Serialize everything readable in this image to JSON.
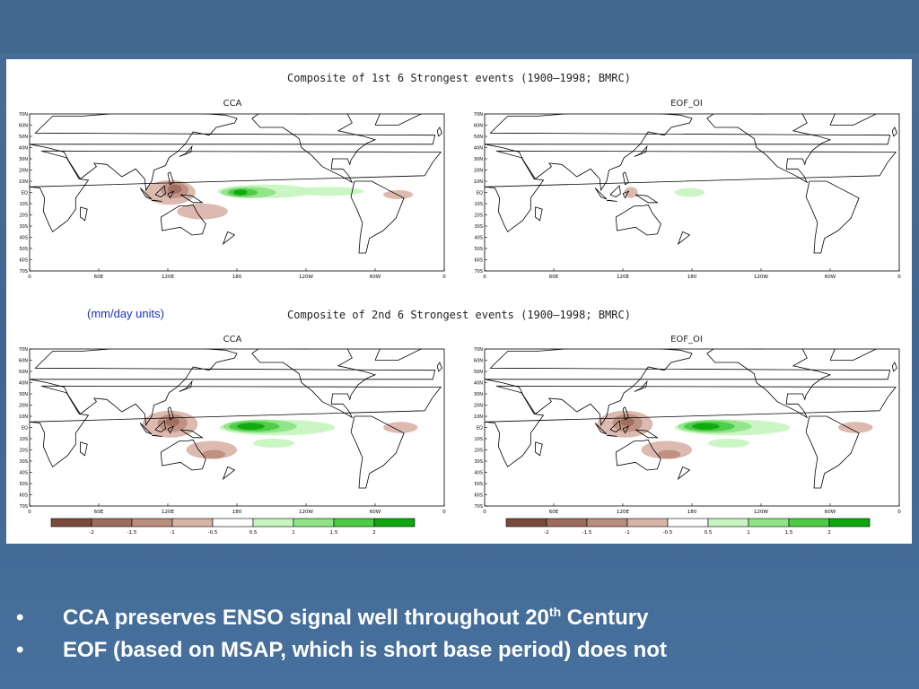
{
  "composites": [
    {
      "title": "Composite of 1st 6 Strongest events (1900–1998; BMRC)",
      "panels": [
        {
          "label": "CCA"
        },
        {
          "label": "EOF_OI"
        }
      ]
    },
    {
      "title": "Composite of 2nd 6 Strongest events (1900–1998; BMRC)",
      "panels": [
        {
          "label": "CCA"
        },
        {
          "label": "EOF_OI"
        }
      ]
    }
  ],
  "units_label": "(mm/day units)",
  "axis": {
    "lat_ticks": [
      "70N",
      "60N",
      "50N",
      "40N",
      "30N",
      "20N",
      "10N",
      "EQ",
      "10S",
      "20S",
      "30S",
      "40S",
      "50S",
      "60S",
      "70S"
    ],
    "lon_ticks": [
      "0",
      "60E",
      "120E",
      "180",
      "120W",
      "60W",
      "0"
    ]
  },
  "colorbar": {
    "ticks": [
      "-2",
      "-1.5",
      "-1",
      "-0.5",
      "0.5",
      "1",
      "1.5",
      "2"
    ],
    "colors": [
      "#7a4b3c",
      "#9c6c5c",
      "#bb8d7d",
      "#d8b3a6",
      "#ffffff",
      "#c7f5c0",
      "#8ee486",
      "#4ccb44",
      "#0ea80e"
    ]
  },
  "bullets": [
    {
      "text": "CCA preserves ENSO signal well throughout 20",
      "sup": "th",
      "tail": " Century"
    },
    {
      "text": "EOF (based on MSAP, which is short base period) does not",
      "sup": "",
      "tail": ""
    }
  ]
}
